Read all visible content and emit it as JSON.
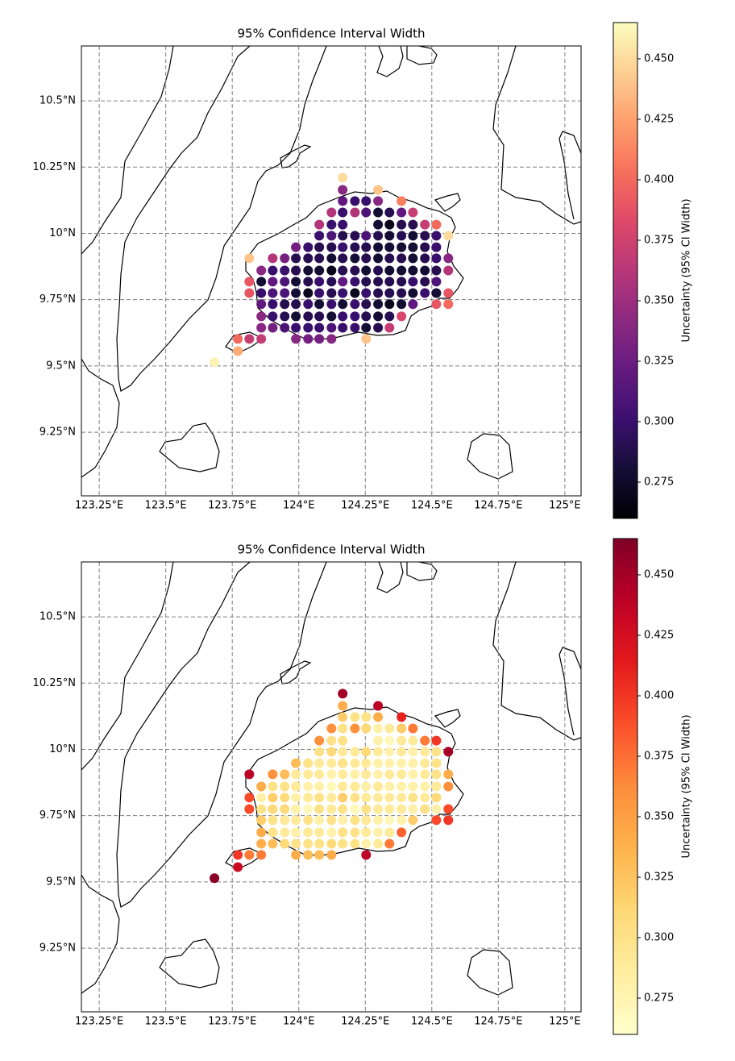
{
  "chart_data": [
    {
      "type": "scatter",
      "title": "95% Confidence Interval Width",
      "colorbar_label": "Uncertainty (95% CI Width)",
      "colormap": "magma",
      "grid": true,
      "xlim": [
        123.183,
        125.061
      ],
      "ylim": [
        9.01,
        10.707
      ],
      "clim": [
        0.26,
        0.465
      ],
      "xticks": [
        {
          "value": 123.25,
          "label": "123.25°E"
        },
        {
          "value": 123.5,
          "label": "123.5°E"
        },
        {
          "value": 123.75,
          "label": "123.75°E"
        },
        {
          "value": 124,
          "label": "124°E"
        },
        {
          "value": 124.25,
          "label": "124.25°E"
        },
        {
          "value": 124.5,
          "label": "124.5°E"
        },
        {
          "value": 124.75,
          "label": "124.75°E"
        },
        {
          "value": 125,
          "label": "125°E"
        }
      ],
      "yticks": [
        {
          "value": 9.25,
          "label": "9.25°N"
        },
        {
          "value": 9.5,
          "label": "9.5°N"
        },
        {
          "value": 9.75,
          "label": "9.75°N"
        },
        {
          "value": 10,
          "label": "10°N"
        },
        {
          "value": 10.25,
          "label": "10.25°N"
        },
        {
          "value": 10.5,
          "label": "10.5°N"
        }
      ],
      "cticks": [
        0.275,
        {
          "value": 0.3,
          "label": "0.300"
        },
        0.325,
        {
          "value": 0.35,
          "label": "0.350"
        },
        0.375,
        {
          "value": 0.4,
          "label": "0.400"
        },
        0.425,
        {
          "value": 0.45,
          "label": "0.450"
        }
      ],
      "x": [
        124.165,
        124.165,
        124.298,
        124.165,
        124.211,
        124.253,
        124.298,
        124.386,
        124.123,
        124.165,
        124.211,
        124.253,
        124.298,
        124.341,
        124.386,
        124.429,
        124.077,
        124.123,
        124.165,
        124.298,
        124.341,
        124.386,
        124.429,
        124.474,
        124.517,
        124.077,
        124.123,
        124.165,
        124.211,
        124.253,
        124.298,
        124.341,
        124.386,
        124.429,
        124.474,
        124.517,
        124.562,
        123.989,
        124.035,
        124.077,
        124.123,
        124.165,
        124.211,
        124.253,
        124.298,
        124.341,
        124.386,
        124.429,
        124.474,
        124.517,
        123.814,
        123.902,
        123.947,
        123.989,
        124.035,
        124.077,
        124.123,
        124.165,
        124.211,
        124.253,
        124.298,
        124.341,
        124.386,
        124.429,
        124.474,
        124.517,
        124.562,
        123.859,
        123.902,
        123.947,
        123.989,
        124.035,
        124.077,
        124.123,
        124.165,
        124.211,
        124.253,
        124.298,
        124.341,
        124.386,
        124.429,
        124.474,
        124.517,
        124.562,
        123.814,
        123.859,
        123.902,
        123.947,
        123.989,
        124.035,
        124.077,
        124.123,
        124.165,
        124.211,
        124.253,
        124.298,
        124.341,
        124.386,
        124.429,
        124.474,
        124.517,
        123.814,
        123.859,
        123.902,
        123.947,
        123.989,
        124.035,
        124.077,
        124.123,
        124.165,
        124.211,
        124.253,
        124.298,
        124.341,
        124.386,
        124.429,
        124.474,
        124.517,
        124.562,
        123.859,
        123.902,
        123.947,
        123.989,
        124.035,
        124.077,
        124.123,
        124.165,
        124.211,
        124.253,
        124.298,
        124.341,
        124.386,
        124.429,
        124.517,
        124.562,
        123.859,
        123.902,
        123.947,
        123.989,
        124.035,
        124.077,
        124.123,
        124.165,
        124.211,
        124.253,
        124.298,
        124.341,
        124.386,
        123.859,
        123.902,
        123.947,
        123.989,
        124.035,
        124.077,
        124.123,
        124.165,
        124.211,
        124.253,
        124.298,
        124.341,
        123.771,
        123.814,
        123.859,
        123.989,
        124.035,
        124.077,
        124.123,
        124.253,
        123.771,
        123.683
      ],
      "y": [
        10.21,
        10.164,
        10.164,
        10.122,
        10.122,
        10.122,
        10.122,
        10.122,
        10.079,
        10.079,
        10.079,
        10.079,
        10.079,
        10.079,
        10.079,
        10.079,
        10.033,
        10.033,
        10.033,
        10.033,
        10.033,
        10.033,
        10.033,
        10.033,
        10.033,
        9.991,
        9.991,
        9.991,
        9.991,
        9.991,
        9.991,
        9.991,
        9.991,
        9.991,
        9.991,
        9.991,
        9.991,
        9.948,
        9.948,
        9.948,
        9.948,
        9.948,
        9.948,
        9.948,
        9.948,
        9.948,
        9.948,
        9.948,
        9.948,
        9.948,
        9.906,
        9.906,
        9.906,
        9.906,
        9.906,
        9.906,
        9.906,
        9.906,
        9.906,
        9.906,
        9.906,
        9.906,
        9.906,
        9.906,
        9.906,
        9.906,
        9.906,
        9.86,
        9.86,
        9.86,
        9.86,
        9.86,
        9.86,
        9.86,
        9.86,
        9.86,
        9.86,
        9.86,
        9.86,
        9.86,
        9.86,
        9.86,
        9.86,
        9.86,
        9.818,
        9.818,
        9.818,
        9.818,
        9.818,
        9.818,
        9.818,
        9.818,
        9.818,
        9.818,
        9.818,
        9.818,
        9.818,
        9.818,
        9.818,
        9.818,
        9.818,
        9.775,
        9.775,
        9.775,
        9.775,
        9.775,
        9.775,
        9.775,
        9.775,
        9.775,
        9.775,
        9.775,
        9.775,
        9.775,
        9.775,
        9.775,
        9.775,
        9.775,
        9.775,
        9.733,
        9.733,
        9.733,
        9.733,
        9.733,
        9.733,
        9.733,
        9.733,
        9.733,
        9.733,
        9.733,
        9.733,
        9.733,
        9.733,
        9.733,
        9.733,
        9.687,
        9.687,
        9.687,
        9.687,
        9.687,
        9.687,
        9.687,
        9.687,
        9.687,
        9.687,
        9.687,
        9.687,
        9.687,
        9.644,
        9.644,
        9.644,
        9.644,
        9.644,
        9.644,
        9.644,
        9.644,
        9.644,
        9.644,
        9.644,
        9.644,
        9.602,
        9.602,
        9.602,
        9.602,
        9.602,
        9.602,
        9.602,
        9.602,
        9.556,
        9.514
      ],
      "values": [
        0.45,
        0.34,
        0.44,
        0.32,
        0.3,
        0.3,
        0.34,
        0.41,
        0.36,
        0.3,
        0.36,
        0.31,
        0.28,
        0.29,
        0.32,
        0.37,
        0.36,
        0.3,
        0.3,
        0.28,
        0.27,
        0.29,
        0.29,
        0.37,
        0.4,
        0.3,
        0.31,
        0.29,
        0.29,
        0.31,
        0.29,
        0.28,
        0.29,
        0.28,
        0.29,
        0.3,
        0.45,
        0.33,
        0.3,
        0.29,
        0.29,
        0.3,
        0.29,
        0.29,
        0.28,
        0.28,
        0.28,
        0.28,
        0.29,
        0.3,
        0.44,
        0.36,
        0.33,
        0.29,
        0.29,
        0.29,
        0.28,
        0.29,
        0.28,
        0.29,
        0.28,
        0.29,
        0.29,
        0.28,
        0.29,
        0.3,
        0.34,
        0.34,
        0.3,
        0.3,
        0.29,
        0.28,
        0.28,
        0.27,
        0.29,
        0.29,
        0.28,
        0.29,
        0.28,
        0.28,
        0.28,
        0.28,
        0.29,
        0.36,
        0.39,
        0.28,
        0.32,
        0.31,
        0.28,
        0.29,
        0.3,
        0.29,
        0.32,
        0.3,
        0.29,
        0.29,
        0.29,
        0.29,
        0.3,
        0.29,
        0.31,
        0.39,
        0.3,
        0.31,
        0.31,
        0.28,
        0.27,
        0.3,
        0.29,
        0.3,
        0.27,
        0.3,
        0.29,
        0.29,
        0.29,
        0.28,
        0.3,
        0.28,
        0.39,
        0.32,
        0.3,
        0.29,
        0.29,
        0.3,
        0.28,
        0.3,
        0.28,
        0.3,
        0.29,
        0.28,
        0.27,
        0.28,
        0.32,
        0.39,
        0.4,
        0.34,
        0.3,
        0.29,
        0.28,
        0.29,
        0.29,
        0.28,
        0.3,
        0.3,
        0.29,
        0.28,
        0.29,
        0.38,
        0.34,
        0.33,
        0.31,
        0.3,
        0.3,
        0.3,
        0.31,
        0.3,
        0.3,
        0.28,
        0.29,
        0.37,
        0.4,
        0.37,
        0.37,
        0.34,
        0.33,
        0.33,
        0.34,
        0.44,
        0.43,
        0.46
      ]
    },
    {
      "type": "scatter",
      "title": "95% Confidence Interval Width",
      "colorbar_label": "Uncertainty (95% CI Width)",
      "colormap": "YlOrRd",
      "grid": true,
      "xlim": [
        123.183,
        125.061
      ],
      "ylim": [
        9.01,
        10.707
      ],
      "clim": [
        0.26,
        0.465
      ],
      "xticks": [
        {
          "value": 123.25,
          "label": "123.25°E"
        },
        {
          "value": 123.5,
          "label": "123.5°E"
        },
        {
          "value": 123.75,
          "label": "123.75°E"
        },
        {
          "value": 124,
          "label": "124°E"
        },
        {
          "value": 124.25,
          "label": "124.25°E"
        },
        {
          "value": 124.5,
          "label": "124.5°E"
        },
        {
          "value": 124.75,
          "label": "124.75°E"
        },
        {
          "value": 125,
          "label": "125°E"
        }
      ],
      "yticks": [
        {
          "value": 9.25,
          "label": "9.25°N"
        },
        {
          "value": 9.5,
          "label": "9.5°N"
        },
        {
          "value": 9.75,
          "label": "9.75°N"
        },
        {
          "value": 10,
          "label": "10°N"
        },
        {
          "value": 10.25,
          "label": "10.25°N"
        },
        {
          "value": 10.5,
          "label": "10.5°N"
        }
      ],
      "cticks": [
        0.275,
        {
          "value": 0.3,
          "label": "0.300"
        },
        0.325,
        {
          "value": 0.35,
          "label": "0.350"
        },
        0.375,
        {
          "value": 0.4,
          "label": "0.400"
        },
        0.425,
        {
          "value": 0.45,
          "label": "0.450"
        }
      ],
      "x": [
        124.165,
        124.165,
        124.298,
        124.165,
        124.211,
        124.253,
        124.298,
        124.386,
        124.123,
        124.165,
        124.211,
        124.253,
        124.298,
        124.341,
        124.386,
        124.429,
        124.077,
        124.123,
        124.165,
        124.298,
        124.341,
        124.386,
        124.429,
        124.474,
        124.517,
        124.077,
        124.123,
        124.165,
        124.211,
        124.253,
        124.298,
        124.341,
        124.386,
        124.429,
        124.474,
        124.517,
        124.562,
        123.989,
        124.035,
        124.077,
        124.123,
        124.165,
        124.211,
        124.253,
        124.298,
        124.341,
        124.386,
        124.429,
        124.474,
        124.517,
        123.814,
        123.902,
        123.947,
        123.989,
        124.035,
        124.077,
        124.123,
        124.165,
        124.211,
        124.253,
        124.298,
        124.341,
        124.386,
        124.429,
        124.474,
        124.517,
        124.562,
        123.859,
        123.902,
        123.947,
        123.989,
        124.035,
        124.077,
        124.123,
        124.165,
        124.211,
        124.253,
        124.298,
        124.341,
        124.386,
        124.429,
        124.474,
        124.517,
        124.562,
        123.814,
        123.859,
        123.902,
        123.947,
        123.989,
        124.035,
        124.077,
        124.123,
        124.165,
        124.211,
        124.253,
        124.298,
        124.341,
        124.386,
        124.429,
        124.474,
        124.517,
        123.814,
        123.859,
        123.902,
        123.947,
        123.989,
        124.035,
        124.077,
        124.123,
        124.165,
        124.211,
        124.253,
        124.298,
        124.341,
        124.386,
        124.429,
        124.474,
        124.517,
        124.562,
        123.859,
        123.902,
        123.947,
        123.989,
        124.035,
        124.077,
        124.123,
        124.165,
        124.211,
        124.253,
        124.298,
        124.341,
        124.386,
        124.429,
        124.517,
        124.562,
        123.859,
        123.902,
        123.947,
        123.989,
        124.035,
        124.077,
        124.123,
        124.165,
        124.211,
        124.253,
        124.298,
        124.341,
        124.386,
        123.859,
        123.902,
        123.947,
        123.989,
        124.035,
        124.077,
        124.123,
        124.165,
        124.211,
        124.253,
        124.298,
        124.341,
        123.771,
        123.814,
        123.859,
        123.989,
        124.035,
        124.077,
        124.123,
        124.253,
        123.771,
        123.683
      ],
      "y": [
        10.21,
        10.164,
        10.164,
        10.122,
        10.122,
        10.122,
        10.122,
        10.122,
        10.079,
        10.079,
        10.079,
        10.079,
        10.079,
        10.079,
        10.079,
        10.079,
        10.033,
        10.033,
        10.033,
        10.033,
        10.033,
        10.033,
        10.033,
        10.033,
        10.033,
        9.991,
        9.991,
        9.991,
        9.991,
        9.991,
        9.991,
        9.991,
        9.991,
        9.991,
        9.991,
        9.991,
        9.991,
        9.948,
        9.948,
        9.948,
        9.948,
        9.948,
        9.948,
        9.948,
        9.948,
        9.948,
        9.948,
        9.948,
        9.948,
        9.948,
        9.906,
        9.906,
        9.906,
        9.906,
        9.906,
        9.906,
        9.906,
        9.906,
        9.906,
        9.906,
        9.906,
        9.906,
        9.906,
        9.906,
        9.906,
        9.906,
        9.906,
        9.86,
        9.86,
        9.86,
        9.86,
        9.86,
        9.86,
        9.86,
        9.86,
        9.86,
        9.86,
        9.86,
        9.86,
        9.86,
        9.86,
        9.86,
        9.86,
        9.86,
        9.818,
        9.818,
        9.818,
        9.818,
        9.818,
        9.818,
        9.818,
        9.818,
        9.818,
        9.818,
        9.818,
        9.818,
        9.818,
        9.818,
        9.818,
        9.818,
        9.818,
        9.775,
        9.775,
        9.775,
        9.775,
        9.775,
        9.775,
        9.775,
        9.775,
        9.775,
        9.775,
        9.775,
        9.775,
        9.775,
        9.775,
        9.775,
        9.775,
        9.775,
        9.775,
        9.733,
        9.733,
        9.733,
        9.733,
        9.733,
        9.733,
        9.733,
        9.733,
        9.733,
        9.733,
        9.733,
        9.733,
        9.733,
        9.733,
        9.733,
        9.733,
        9.687,
        9.687,
        9.687,
        9.687,
        9.687,
        9.687,
        9.687,
        9.687,
        9.687,
        9.687,
        9.687,
        9.687,
        9.687,
        9.644,
        9.644,
        9.644,
        9.644,
        9.644,
        9.644,
        9.644,
        9.644,
        9.644,
        9.644,
        9.644,
        9.644,
        9.602,
        9.602,
        9.602,
        9.602,
        9.602,
        9.602,
        9.602,
        9.602,
        9.556,
        9.514
      ],
      "values": [
        0.45,
        0.34,
        0.44,
        0.32,
        0.3,
        0.3,
        0.34,
        0.41,
        0.36,
        0.3,
        0.36,
        0.31,
        0.28,
        0.29,
        0.32,
        0.37,
        0.36,
        0.3,
        0.3,
        0.28,
        0.27,
        0.29,
        0.29,
        0.37,
        0.4,
        0.3,
        0.31,
        0.29,
        0.29,
        0.31,
        0.29,
        0.28,
        0.29,
        0.28,
        0.29,
        0.3,
        0.45,
        0.33,
        0.3,
        0.29,
        0.29,
        0.3,
        0.29,
        0.29,
        0.28,
        0.28,
        0.28,
        0.28,
        0.29,
        0.3,
        0.44,
        0.36,
        0.33,
        0.29,
        0.29,
        0.29,
        0.28,
        0.29,
        0.28,
        0.29,
        0.28,
        0.29,
        0.29,
        0.28,
        0.29,
        0.3,
        0.34,
        0.34,
        0.3,
        0.3,
        0.29,
        0.28,
        0.28,
        0.27,
        0.29,
        0.29,
        0.28,
        0.29,
        0.28,
        0.28,
        0.28,
        0.28,
        0.29,
        0.36,
        0.39,
        0.28,
        0.32,
        0.31,
        0.28,
        0.29,
        0.3,
        0.29,
        0.32,
        0.3,
        0.29,
        0.29,
        0.29,
        0.29,
        0.3,
        0.29,
        0.31,
        0.39,
        0.3,
        0.31,
        0.31,
        0.28,
        0.27,
        0.3,
        0.29,
        0.3,
        0.27,
        0.3,
        0.29,
        0.29,
        0.29,
        0.28,
        0.3,
        0.28,
        0.39,
        0.32,
        0.3,
        0.29,
        0.29,
        0.3,
        0.28,
        0.3,
        0.28,
        0.3,
        0.29,
        0.28,
        0.27,
        0.28,
        0.32,
        0.39,
        0.4,
        0.34,
        0.3,
        0.29,
        0.28,
        0.29,
        0.29,
        0.28,
        0.3,
        0.3,
        0.29,
        0.28,
        0.29,
        0.38,
        0.34,
        0.33,
        0.31,
        0.3,
        0.3,
        0.3,
        0.31,
        0.3,
        0.3,
        0.28,
        0.29,
        0.37,
        0.4,
        0.37,
        0.37,
        0.34,
        0.33,
        0.33,
        0.34,
        0.44,
        0.43,
        0.46
      ]
    }
  ]
}
